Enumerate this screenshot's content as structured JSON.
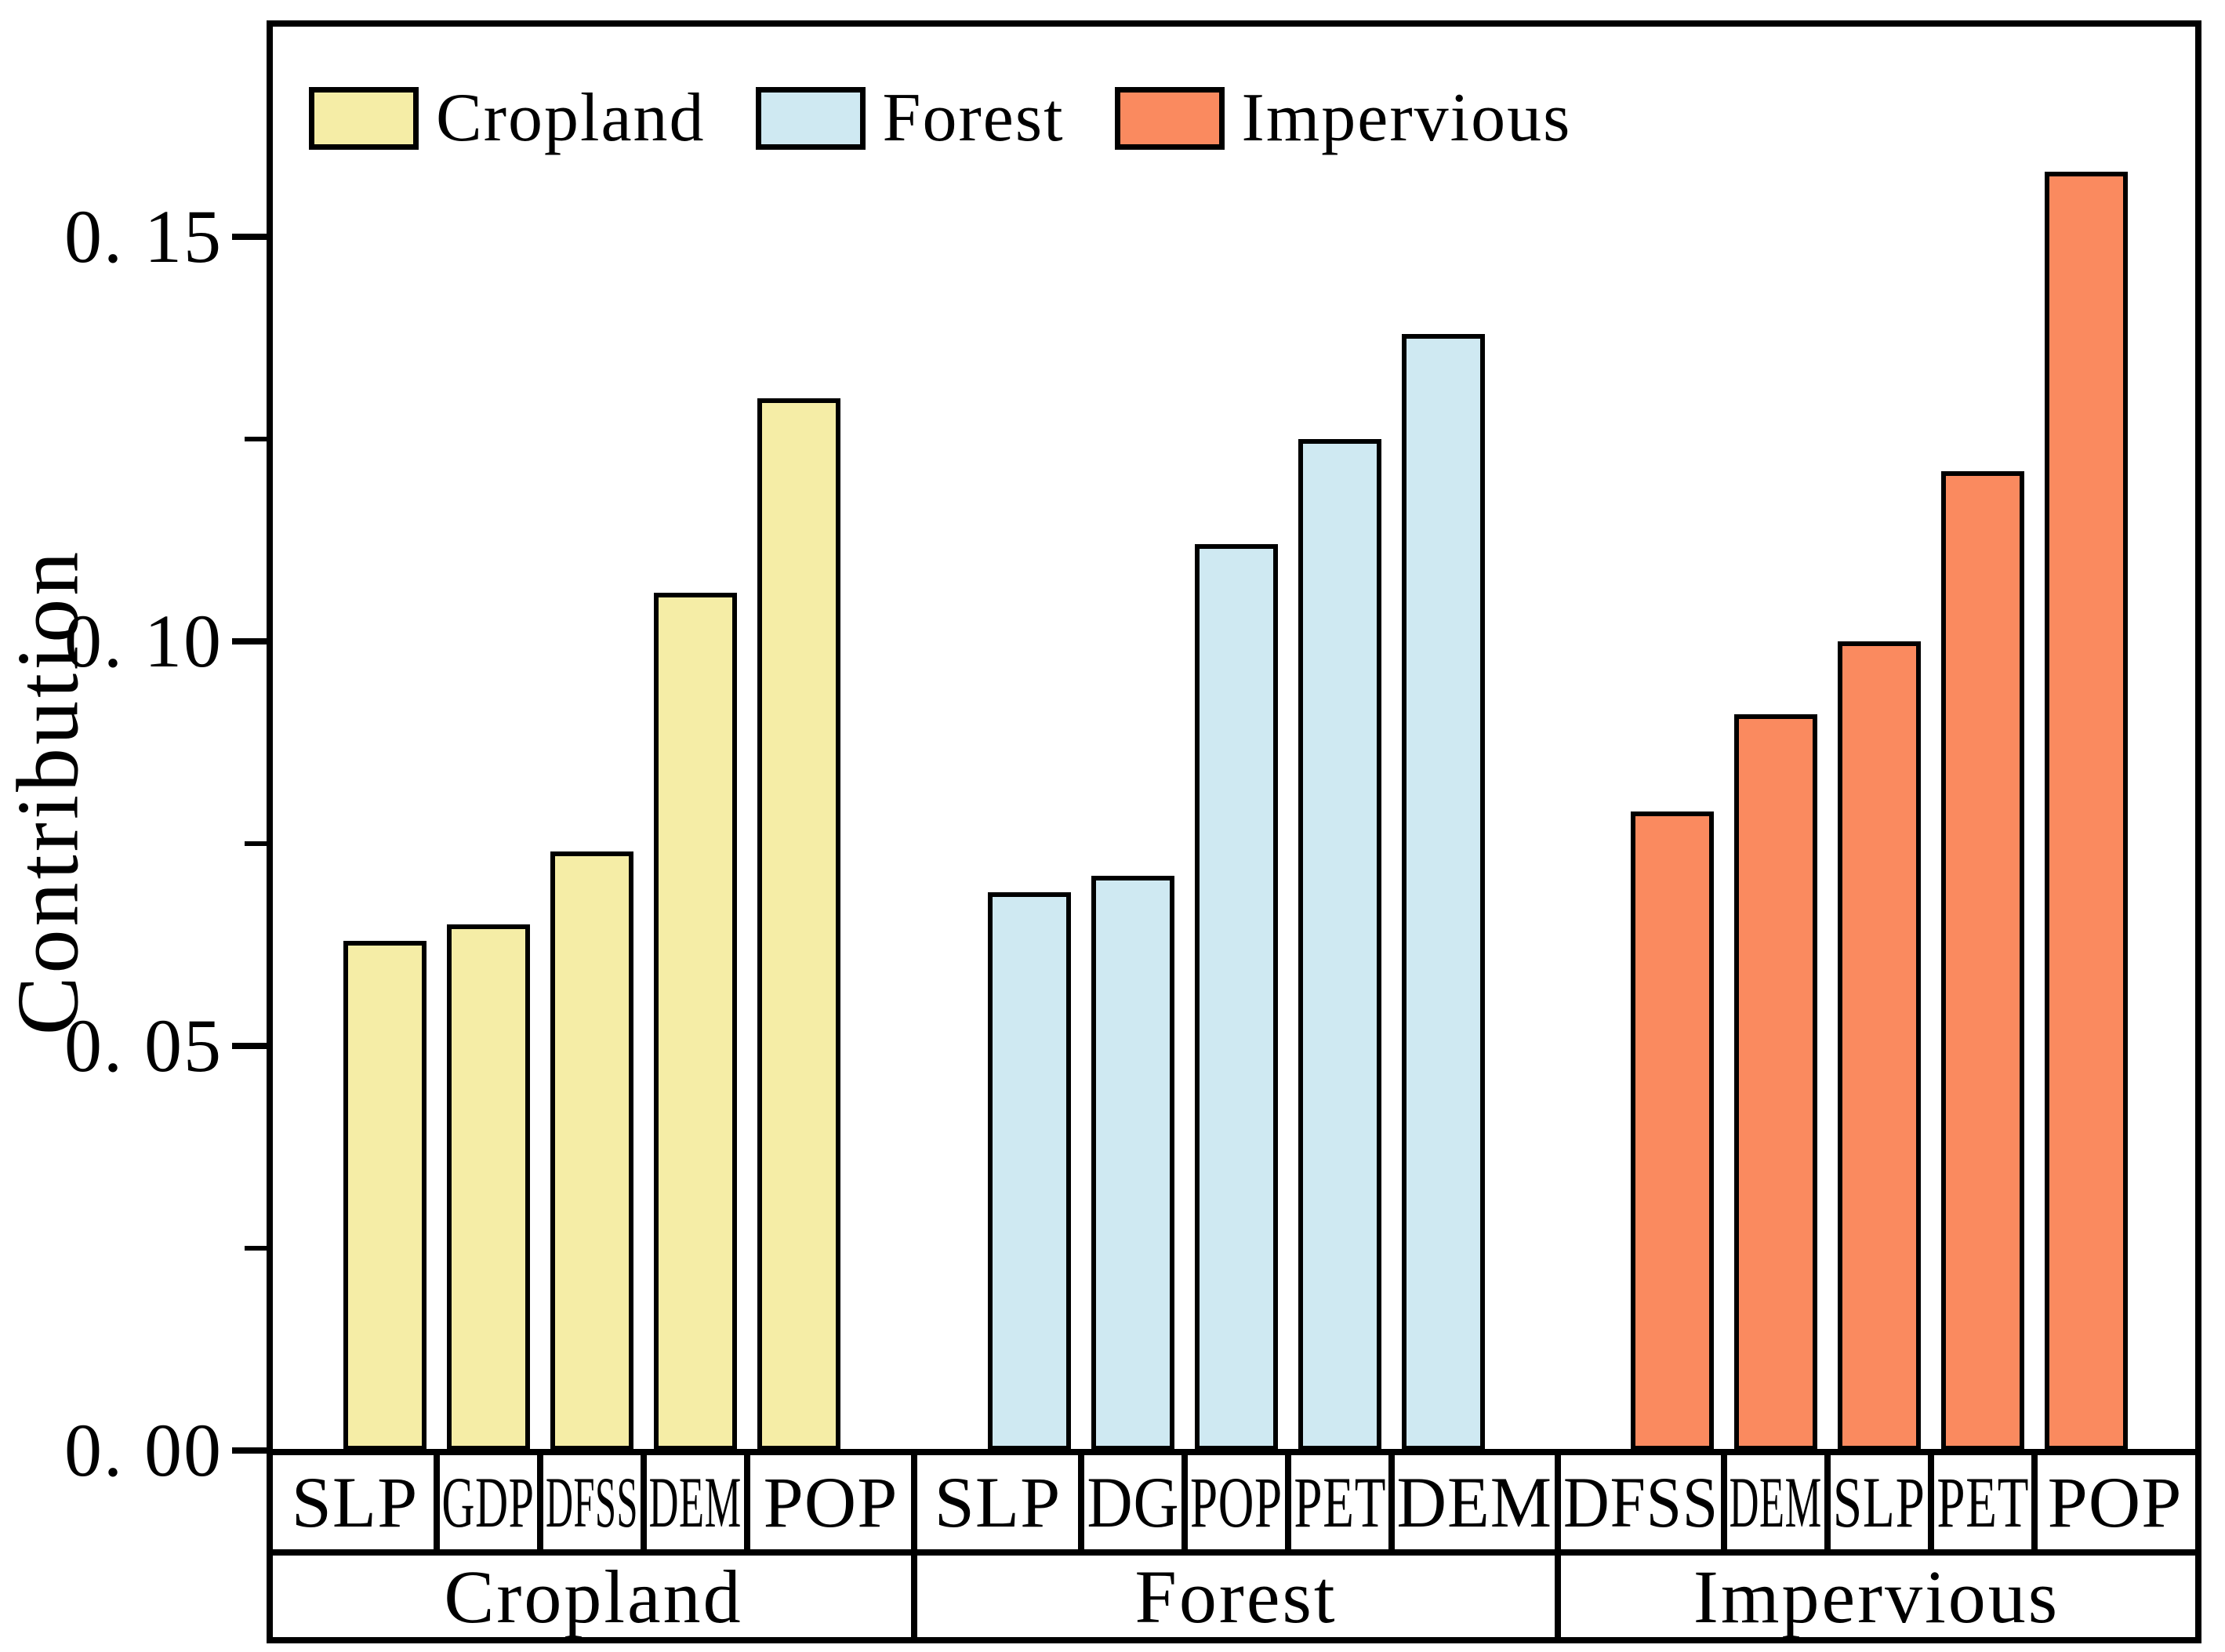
{
  "figure": {
    "ylabel": "Contribution",
    "background_color": "#ffffff",
    "frame_color": "#000000"
  },
  "legend": {
    "position": "top-left",
    "items": [
      {
        "label": "Cropland",
        "color": "#F5EDA6"
      },
      {
        "label": "Forest",
        "color": "#CFE9F2"
      },
      {
        "label": "Impervious",
        "color": "#FA8A5F"
      }
    ]
  },
  "y_axis": {
    "tick_labels": [
      "0. 00",
      "0. 05",
      "0. 10",
      "0. 15"
    ],
    "tick_values": [
      0,
      0.05,
      0.1,
      0.15
    ],
    "minor_tick_values": [
      0.025,
      0.075,
      0.125
    ]
  },
  "chart_data": {
    "type": "bar",
    "title": "",
    "xlabel": "",
    "ylabel": "Contribution",
    "ylim": [
      0,
      0.175
    ],
    "grid": false,
    "legend_position": "top-left",
    "groups": [
      {
        "name": "Cropland",
        "color": "#F5EDA6",
        "categories": [
          "SLP",
          "GDP",
          "DFSS",
          "DEM",
          "POP"
        ],
        "values": [
          0.063,
          0.065,
          0.074,
          0.106,
          0.13
        ]
      },
      {
        "name": "Forest",
        "color": "#CFE9F2",
        "categories": [
          "SLP",
          "DG",
          "POP",
          "PET",
          "DEM"
        ],
        "values": [
          0.069,
          0.071,
          0.112,
          0.125,
          0.138
        ]
      },
      {
        "name": "Impervious",
        "color": "#FA8A5F",
        "categories": [
          "DFSS",
          "DEM",
          "SLP",
          "PET",
          "POP"
        ],
        "values": [
          0.079,
          0.091,
          0.1,
          0.121,
          0.158
        ]
      }
    ]
  }
}
